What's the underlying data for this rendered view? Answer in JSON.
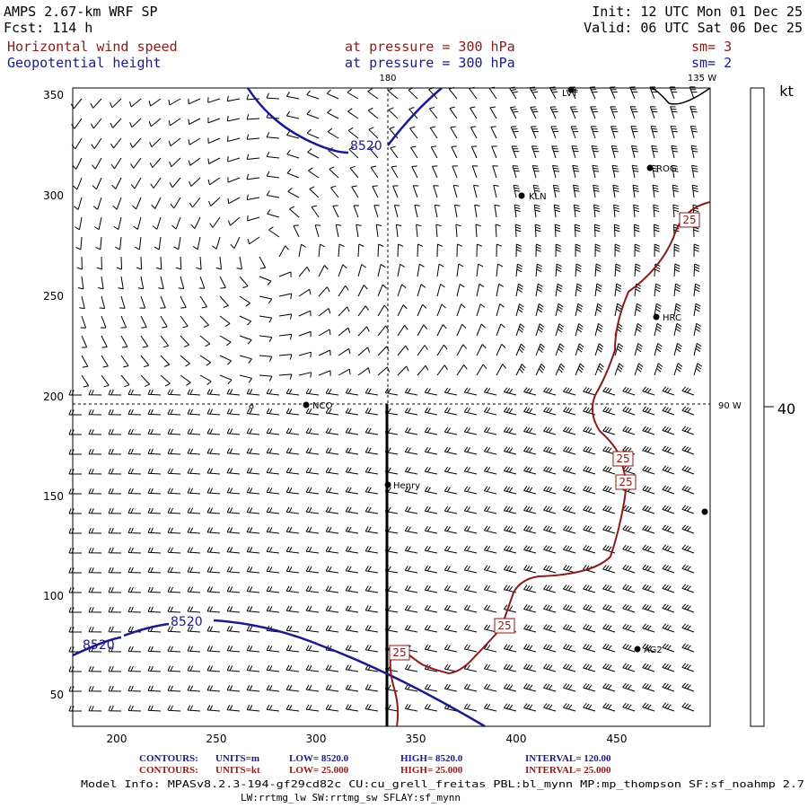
{
  "header": {
    "model": "AMPS 2.67-km WRF SP",
    "forecast": "Fcst: 114 h",
    "init": "Init: 12 UTC Mon 01 Dec 25",
    "valid": "Valid: 06 UTC Sat 06 Dec 25",
    "field1_name": "Horizontal wind speed",
    "field1_level": "at pressure =  300 hPa",
    "field1_sm": "sm= 3",
    "field2_name": "Geopotential height",
    "field2_level": "at pressure =  300 hPa",
    "field2_sm": "sm= 2"
  },
  "axes": {
    "x_ticks": [
      "200",
      "250",
      "300",
      "350",
      "400",
      "450"
    ],
    "y_ticks": [
      "350",
      "300",
      "250",
      "200",
      "150",
      "100",
      "50"
    ],
    "lon_180": "180",
    "lon_135w": "135 W",
    "lon_90w": "90 W"
  },
  "colorbar": {
    "unit": "kt",
    "value": "40",
    "outline_color": "#000000"
  },
  "contours": {
    "height_label": "8520",
    "height_color": "#1a1a8b",
    "isotach_label": "25",
    "isotach_color": "#8b1a1a"
  },
  "stations": [
    {
      "name": "LVT"
    },
    {
      "name": "ROG"
    },
    {
      "name": "KLN"
    },
    {
      "name": "HRC"
    },
    {
      "name": "NCO"
    },
    {
      "name": "Henry"
    },
    {
      "name": "AG2"
    }
  ],
  "footer": {
    "line1_label": "CONTOURS:",
    "line1_units": "UNITS=m",
    "line1_low": "LOW=   8520.0",
    "line1_high": "HIGH=  8520.0",
    "line1_interval": "INTERVAL=     120.00",
    "line2_label": "CONTOURS:",
    "line2_units": "UNITS=kt",
    "line2_low": "LOW=   25.000",
    "line2_high": "HIGH=  25.000",
    "line2_interval": "INTERVAL=     25.000",
    "model_info": "Model Info: MPASv8.2.3-194-gf29cd82c CU:cu_grell_freitas PBL:bl_mynn MP:mp_thompson SF:sf_noahmp 2.7",
    "model_info2": "LW:rrtmg_lw SW:rrtmg_sw SFLAY:sf_mynn"
  }
}
